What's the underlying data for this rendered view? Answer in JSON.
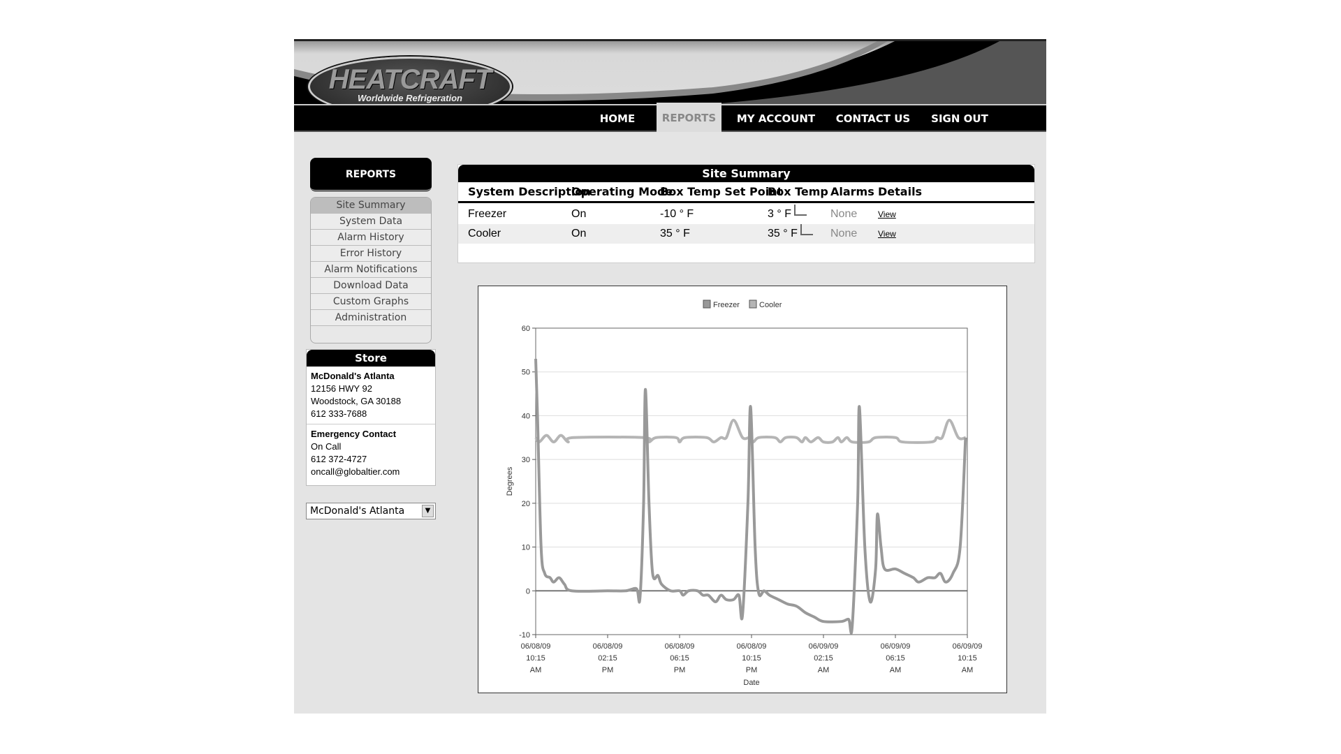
{
  "header": {
    "logo_text": "HEATCRAFT",
    "logo_tagline": "Worldwide Refrigeration"
  },
  "nav": [
    {
      "label": "HOME"
    },
    {
      "label": "REPORTS",
      "active": true
    },
    {
      "label": "MY ACCOUNT"
    },
    {
      "label": "CONTACT US"
    },
    {
      "label": "SIGN OUT"
    }
  ],
  "sidebar": {
    "title": "REPORTS",
    "items": [
      "Site Summary",
      "System Data",
      "Alarm History",
      "Error History",
      "Alarm Notifications",
      "Download Data",
      "Custom Graphs",
      "Administration"
    ],
    "active": "Site Summary"
  },
  "store": {
    "title": "Store",
    "name": "McDonald's Atlanta",
    "address1": "12156 HWY 92",
    "address2": "Woodstock, GA 30188",
    "phone": "612 333-7688",
    "emergency_title": "Emergency Contact",
    "emergency_name": "On Call",
    "emergency_phone": "612 372-4727",
    "emergency_email": "oncall@globaltier.com",
    "selector_value": "McDonald's Atlanta"
  },
  "summary": {
    "title": "Site Summary",
    "columns": [
      "System Description",
      "Operating Mode",
      "Box Temp Set Point",
      "Box Temp",
      "Alarms",
      "Details"
    ],
    "rows": [
      [
        "Freezer",
        "On",
        "-10 ° F",
        "3 ° F",
        "None",
        "View"
      ],
      [
        "Cooler",
        "On",
        "35 ° F",
        "35 ° F",
        "None",
        "View"
      ]
    ]
  },
  "chart_data": {
    "type": "line",
    "title": "",
    "xlabel": "Date",
    "ylabel": "Degrees",
    "ylim": [
      -10,
      60
    ],
    "yticks": [
      -10,
      0,
      10,
      20,
      30,
      40,
      50,
      60
    ],
    "xlim": [
      "2009-06-08 10:15",
      "2009-06-09 10:15"
    ],
    "xticks": [
      [
        "06/08/09",
        "10:15",
        "AM"
      ],
      [
        "06/08/09",
        "02:15",
        "PM"
      ],
      [
        "06/08/09",
        "06:15",
        "PM"
      ],
      [
        "06/08/09",
        "10:15",
        "PM"
      ],
      [
        "06/09/09",
        "02:15",
        "AM"
      ],
      [
        "06/09/09",
        "06:15",
        "AM"
      ],
      [
        "06/09/09",
        "10:15",
        "AM"
      ]
    ],
    "grid": true,
    "legend": "top-center",
    "series": [
      {
        "name": "Freezer",
        "color": "#999999",
        "points": [
          [
            "2009-06-08 10:15",
            53
          ],
          [
            "2009-06-08 10:21",
            40
          ],
          [
            "2009-06-08 10:33",
            10
          ],
          [
            "2009-06-08 10:45",
            4
          ],
          [
            "2009-06-08 11:03",
            3
          ],
          [
            "2009-06-08 11:15",
            2
          ],
          [
            "2009-06-08 11:33",
            3
          ],
          [
            "2009-06-08 11:51",
            1.5
          ],
          [
            "2009-06-08 12:15",
            0
          ],
          [
            "2009-06-08 14:15",
            0
          ],
          [
            "2009-06-08 15:15",
            0
          ],
          [
            "2009-06-08 15:51",
            0.5
          ],
          [
            "2009-06-08 16:03",
            -1.5
          ],
          [
            "2009-06-08 16:15",
            20
          ],
          [
            "2009-06-08 16:21",
            46
          ],
          [
            "2009-06-08 16:33",
            20
          ],
          [
            "2009-06-08 16:45",
            4
          ],
          [
            "2009-06-08 17:03",
            3.5
          ],
          [
            "2009-06-08 17:15",
            1.5
          ],
          [
            "2009-06-08 17:45",
            0
          ],
          [
            "2009-06-08 18:15",
            0
          ],
          [
            "2009-06-08 18:27",
            -1
          ],
          [
            "2009-06-08 18:45",
            0
          ],
          [
            "2009-06-08 19:15",
            0
          ],
          [
            "2009-06-08 19:33",
            -1
          ],
          [
            "2009-06-08 19:51",
            -1
          ],
          [
            "2009-06-08 20:15",
            -2.5
          ],
          [
            "2009-06-08 20:33",
            -1
          ],
          [
            "2009-06-08 20:51",
            -2
          ],
          [
            "2009-06-08 21:15",
            -2
          ],
          [
            "2009-06-08 21:33",
            -1
          ],
          [
            "2009-06-08 21:45",
            -5.5
          ],
          [
            "2009-06-08 22:03",
            20
          ],
          [
            "2009-06-08 22:12",
            42
          ],
          [
            "2009-06-08 22:27",
            10
          ],
          [
            "2009-06-08 22:39",
            -0.5
          ],
          [
            "2009-06-08 22:57",
            0
          ],
          [
            "2009-06-08 23:15",
            -1
          ],
          [
            "2009-06-08 23:45",
            -2
          ],
          [
            "2009-06-09 00:15",
            -3
          ],
          [
            "2009-06-09 00:45",
            -3.5
          ],
          [
            "2009-06-09 01:15",
            -5
          ],
          [
            "2009-06-09 01:45",
            -6
          ],
          [
            "2009-06-09 02:15",
            -7
          ],
          [
            "2009-06-09 03:15",
            -7
          ],
          [
            "2009-06-09 03:39",
            -6.5
          ],
          [
            "2009-06-09 03:51",
            -8
          ],
          [
            "2009-06-09 04:09",
            20
          ],
          [
            "2009-06-09 04:15",
            42
          ],
          [
            "2009-06-09 04:33",
            10
          ],
          [
            "2009-06-09 04:51",
            -2.5
          ],
          [
            "2009-06-09 05:09",
            5
          ],
          [
            "2009-06-09 05:15",
            17.5
          ],
          [
            "2009-06-09 05:27",
            10
          ],
          [
            "2009-06-09 05:39",
            5
          ],
          [
            "2009-06-09 06:15",
            5
          ],
          [
            "2009-06-09 06:45",
            4
          ],
          [
            "2009-06-09 07:15",
            3
          ],
          [
            "2009-06-09 07:33",
            2
          ],
          [
            "2009-06-09 08:03",
            3
          ],
          [
            "2009-06-09 08:27",
            3
          ],
          [
            "2009-06-09 08:45",
            4
          ],
          [
            "2009-06-09 09:03",
            2
          ],
          [
            "2009-06-09 09:27",
            4
          ],
          [
            "2009-06-09 09:51",
            10
          ],
          [
            "2009-06-09 10:09",
            35
          ]
        ]
      },
      {
        "name": "Cooler",
        "color": "#b5b5b5",
        "points": [
          [
            "2009-06-08 10:15",
            35
          ],
          [
            "2009-06-08 10:27",
            34
          ],
          [
            "2009-06-08 10:51",
            35.5
          ],
          [
            "2009-06-08 11:15",
            34
          ],
          [
            "2009-06-08 11:39",
            35.5
          ],
          [
            "2009-06-08 12:03",
            34
          ],
          [
            "2009-06-08 12:21",
            35
          ],
          [
            "2009-06-08 16:15",
            35
          ],
          [
            "2009-06-08 16:33",
            34
          ],
          [
            "2009-06-08 16:57",
            35
          ],
          [
            "2009-06-08 18:03",
            35
          ],
          [
            "2009-06-08 18:15",
            34
          ],
          [
            "2009-06-08 18:33",
            35
          ],
          [
            "2009-06-08 19:45",
            35
          ],
          [
            "2009-06-08 20:09",
            34
          ],
          [
            "2009-06-08 20:33",
            35
          ],
          [
            "2009-06-08 20:51",
            35
          ],
          [
            "2009-06-08 21:15",
            39
          ],
          [
            "2009-06-08 21:45",
            35
          ],
          [
            "2009-06-08 22:09",
            35
          ],
          [
            "2009-06-08 22:21",
            34
          ],
          [
            "2009-06-08 22:39",
            35
          ],
          [
            "2009-06-08 23:33",
            35
          ],
          [
            "2009-06-08 23:51",
            34
          ],
          [
            "2009-06-09 00:09",
            35
          ],
          [
            "2009-06-09 00:45",
            35
          ],
          [
            "2009-06-09 01:03",
            34
          ],
          [
            "2009-06-09 01:15",
            35
          ],
          [
            "2009-06-09 01:33",
            34
          ],
          [
            "2009-06-09 01:57",
            35
          ],
          [
            "2009-06-09 02:15",
            34
          ],
          [
            "2009-06-09 02:45",
            34
          ],
          [
            "2009-06-09 03:03",
            35
          ],
          [
            "2009-06-09 03:15",
            34
          ],
          [
            "2009-06-09 03:33",
            35
          ],
          [
            "2009-06-09 03:51",
            34
          ],
          [
            "2009-06-09 04:45",
            34
          ],
          [
            "2009-06-09 05:09",
            35
          ],
          [
            "2009-06-09 06:15",
            35
          ],
          [
            "2009-06-09 06:39",
            34
          ],
          [
            "2009-06-09 08:15",
            34
          ],
          [
            "2009-06-09 08:33",
            35
          ],
          [
            "2009-06-09 08:51",
            35
          ],
          [
            "2009-06-09 09:15",
            39
          ],
          [
            "2009-06-09 09:45",
            35
          ],
          [
            "2009-06-09 10:09",
            35
          ]
        ]
      }
    ]
  }
}
